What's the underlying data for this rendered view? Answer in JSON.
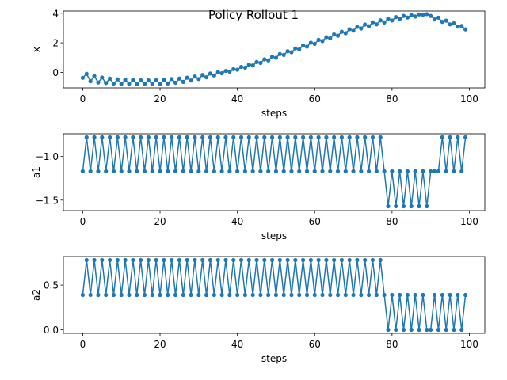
{
  "figure": {
    "title": "Policy Rollout 1"
  },
  "colors": {
    "series": "#1f77b4",
    "axis": "#000000",
    "background": "#ffffff"
  },
  "chart_data": [
    {
      "type": "line",
      "xlabel": "steps",
      "ylabel": "x",
      "xlim": [
        -5,
        104
      ],
      "ylim": [
        -1.05,
        4.15
      ],
      "xticks": [
        0,
        20,
        40,
        60,
        80,
        100
      ],
      "yticks": [
        0,
        2,
        4
      ],
      "marker": "o",
      "x": [
        0,
        1,
        2,
        3,
        4,
        5,
        6,
        7,
        8,
        9,
        10,
        11,
        12,
        13,
        14,
        15,
        16,
        17,
        18,
        19,
        20,
        21,
        22,
        23,
        24,
        25,
        26,
        27,
        28,
        29,
        30,
        31,
        32,
        33,
        34,
        35,
        36,
        37,
        38,
        39,
        40,
        41,
        42,
        43,
        44,
        45,
        46,
        47,
        48,
        49,
        50,
        51,
        52,
        53,
        54,
        55,
        56,
        57,
        58,
        59,
        60,
        61,
        62,
        63,
        64,
        65,
        66,
        67,
        68,
        69,
        70,
        71,
        72,
        73,
        74,
        75,
        76,
        77,
        78,
        79,
        80,
        81,
        82,
        83,
        84,
        85,
        86,
        87,
        88,
        89,
        90,
        91,
        92,
        93,
        94,
        95,
        96,
        97,
        98,
        99
      ],
      "y": [
        -0.37,
        -0.1,
        -0.6,
        -0.25,
        -0.68,
        -0.35,
        -0.72,
        -0.42,
        -0.76,
        -0.47,
        -0.78,
        -0.5,
        -0.78,
        -0.52,
        -0.8,
        -0.53,
        -0.8,
        -0.54,
        -0.8,
        -0.53,
        -0.79,
        -0.5,
        -0.75,
        -0.45,
        -0.7,
        -0.42,
        -0.64,
        -0.36,
        -0.55,
        -0.28,
        -0.45,
        -0.18,
        -0.33,
        -0.08,
        -0.21,
        0.02,
        -0.06,
        0.1,
        0.05,
        0.22,
        0.18,
        0.37,
        0.32,
        0.53,
        0.47,
        0.7,
        0.64,
        0.88,
        0.81,
        1.06,
        0.99,
        1.24,
        1.18,
        1.43,
        1.36,
        1.62,
        1.55,
        1.82,
        1.74,
        2.01,
        1.93,
        2.2,
        2.12,
        2.38,
        2.3,
        2.57,
        2.48,
        2.75,
        2.65,
        2.92,
        2.82,
        3.08,
        2.97,
        3.24,
        3.12,
        3.39,
        3.25,
        3.52,
        3.38,
        3.63,
        3.51,
        3.74,
        3.62,
        3.82,
        3.71,
        3.88,
        3.78,
        3.92,
        3.9,
        3.94,
        3.82,
        3.58,
        3.7,
        3.42,
        3.5,
        3.25,
        3.32,
        3.1,
        3.14,
        2.91
      ]
    },
    {
      "type": "line",
      "xlabel": "steps",
      "ylabel": "a1",
      "xlim": [
        -5,
        104
      ],
      "ylim": [
        -1.62,
        -0.74
      ],
      "xticks": [
        0,
        20,
        40,
        60,
        80,
        100
      ],
      "yticks": [
        -1.5,
        -1.0
      ],
      "marker": "o",
      "x": [
        0,
        1,
        2,
        3,
        4,
        5,
        6,
        7,
        8,
        9,
        10,
        11,
        12,
        13,
        14,
        15,
        16,
        17,
        18,
        19,
        20,
        21,
        22,
        23,
        24,
        25,
        26,
        27,
        28,
        29,
        30,
        31,
        32,
        33,
        34,
        35,
        36,
        37,
        38,
        39,
        40,
        41,
        42,
        43,
        44,
        45,
        46,
        47,
        48,
        49,
        50,
        51,
        52,
        53,
        54,
        55,
        56,
        57,
        58,
        59,
        60,
        61,
        62,
        63,
        64,
        65,
        66,
        67,
        68,
        69,
        70,
        71,
        72,
        73,
        74,
        75,
        76,
        77,
        78,
        79,
        80,
        81,
        82,
        83,
        84,
        85,
        86,
        87,
        88,
        89,
        90,
        91,
        92,
        93,
        94,
        95,
        96,
        97,
        98,
        99
      ],
      "y": [
        -1.17,
        -0.78,
        -1.17,
        -0.78,
        -1.17,
        -0.78,
        -1.17,
        -0.78,
        -1.17,
        -0.78,
        -1.17,
        -0.78,
        -1.17,
        -0.78,
        -1.17,
        -0.78,
        -1.17,
        -0.78,
        -1.17,
        -0.78,
        -1.17,
        -0.78,
        -1.17,
        -0.78,
        -1.17,
        -0.78,
        -1.17,
        -0.78,
        -1.17,
        -0.78,
        -1.17,
        -0.78,
        -1.17,
        -0.78,
        -1.17,
        -0.78,
        -1.17,
        -0.78,
        -1.17,
        -0.78,
        -1.17,
        -0.78,
        -1.17,
        -0.78,
        -1.17,
        -0.78,
        -1.17,
        -0.78,
        -1.17,
        -0.78,
        -1.17,
        -0.78,
        -1.17,
        -0.78,
        -1.17,
        -0.78,
        -1.17,
        -0.78,
        -1.17,
        -0.78,
        -1.17,
        -0.78,
        -1.17,
        -0.78,
        -1.17,
        -0.78,
        -1.17,
        -0.78,
        -1.17,
        -0.78,
        -1.17,
        -0.78,
        -1.17,
        -0.78,
        -1.17,
        -0.78,
        -1.17,
        -0.78,
        -1.17,
        -1.57,
        -1.17,
        -1.57,
        -1.17,
        -1.57,
        -1.17,
        -1.57,
        -1.17,
        -1.57,
        -1.17,
        -1.57,
        -1.17,
        -1.17,
        -1.17,
        -0.78,
        -1.17,
        -0.78,
        -1.17,
        -0.78,
        -1.17,
        -0.78
      ]
    },
    {
      "type": "line",
      "xlabel": "steps",
      "ylabel": "a2",
      "xlim": [
        -5,
        104
      ],
      "ylim": [
        -0.04,
        0.82
      ],
      "xticks": [
        0,
        20,
        40,
        60,
        80,
        100
      ],
      "yticks": [
        0.0,
        0.5
      ],
      "marker": "o",
      "x": [
        0,
        1,
        2,
        3,
        4,
        5,
        6,
        7,
        8,
        9,
        10,
        11,
        12,
        13,
        14,
        15,
        16,
        17,
        18,
        19,
        20,
        21,
        22,
        23,
        24,
        25,
        26,
        27,
        28,
        29,
        30,
        31,
        32,
        33,
        34,
        35,
        36,
        37,
        38,
        39,
        40,
        41,
        42,
        43,
        44,
        45,
        46,
        47,
        48,
        49,
        50,
        51,
        52,
        53,
        54,
        55,
        56,
        57,
        58,
        59,
        60,
        61,
        62,
        63,
        64,
        65,
        66,
        67,
        68,
        69,
        70,
        71,
        72,
        73,
        74,
        75,
        76,
        77,
        78,
        79,
        80,
        81,
        82,
        83,
        84,
        85,
        86,
        87,
        88,
        89,
        90,
        91,
        92,
        93,
        94,
        95,
        96,
        97,
        98,
        99
      ],
      "y": [
        0.39,
        0.78,
        0.39,
        0.78,
        0.39,
        0.78,
        0.39,
        0.78,
        0.39,
        0.78,
        0.39,
        0.78,
        0.39,
        0.78,
        0.39,
        0.78,
        0.39,
        0.78,
        0.39,
        0.78,
        0.39,
        0.78,
        0.39,
        0.78,
        0.39,
        0.78,
        0.39,
        0.78,
        0.39,
        0.78,
        0.39,
        0.78,
        0.39,
        0.78,
        0.39,
        0.78,
        0.39,
        0.78,
        0.39,
        0.78,
        0.39,
        0.78,
        0.39,
        0.78,
        0.39,
        0.78,
        0.39,
        0.78,
        0.39,
        0.78,
        0.39,
        0.78,
        0.39,
        0.78,
        0.39,
        0.78,
        0.39,
        0.78,
        0.39,
        0.78,
        0.39,
        0.78,
        0.39,
        0.78,
        0.39,
        0.78,
        0.39,
        0.78,
        0.39,
        0.78,
        0.39,
        0.78,
        0.39,
        0.78,
        0.39,
        0.78,
        0.39,
        0.78,
        0.39,
        0.0,
        0.39,
        0.0,
        0.39,
        0.0,
        0.39,
        0.0,
        0.39,
        0.0,
        0.39,
        0.0,
        0.0,
        0.39,
        0.0,
        0.39,
        0.0,
        0.39,
        0.0,
        0.39,
        0.0,
        0.39
      ]
    }
  ]
}
